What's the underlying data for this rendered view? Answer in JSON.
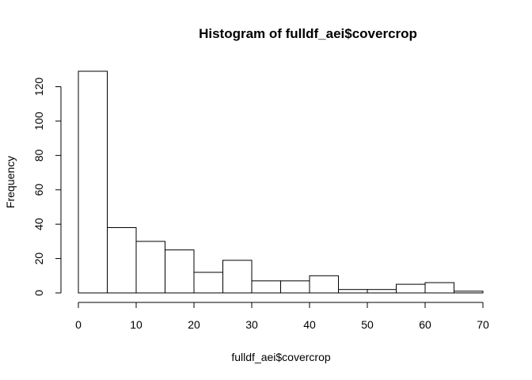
{
  "chart_data": {
    "type": "bar",
    "title": "Histogram of fulldf_aei$covercrop",
    "xlabel": "fulldf_aei$covercrop",
    "ylabel": "Frequency",
    "bin_edges": [
      0,
      5,
      10,
      15,
      20,
      25,
      30,
      35,
      40,
      45,
      50,
      55,
      60,
      65,
      70
    ],
    "values": [
      129,
      38,
      30,
      25,
      12,
      19,
      7,
      7,
      10,
      2,
      2,
      5,
      6,
      1
    ],
    "xlim": [
      0,
      70
    ],
    "ylim": [
      0,
      129
    ],
    "x_ticks": [
      "0",
      "10",
      "20",
      "30",
      "40",
      "50",
      "60",
      "70"
    ],
    "y_ticks": [
      "0",
      "20",
      "40",
      "60",
      "80",
      "100",
      "120"
    ],
    "grid": false,
    "legend": "none"
  }
}
